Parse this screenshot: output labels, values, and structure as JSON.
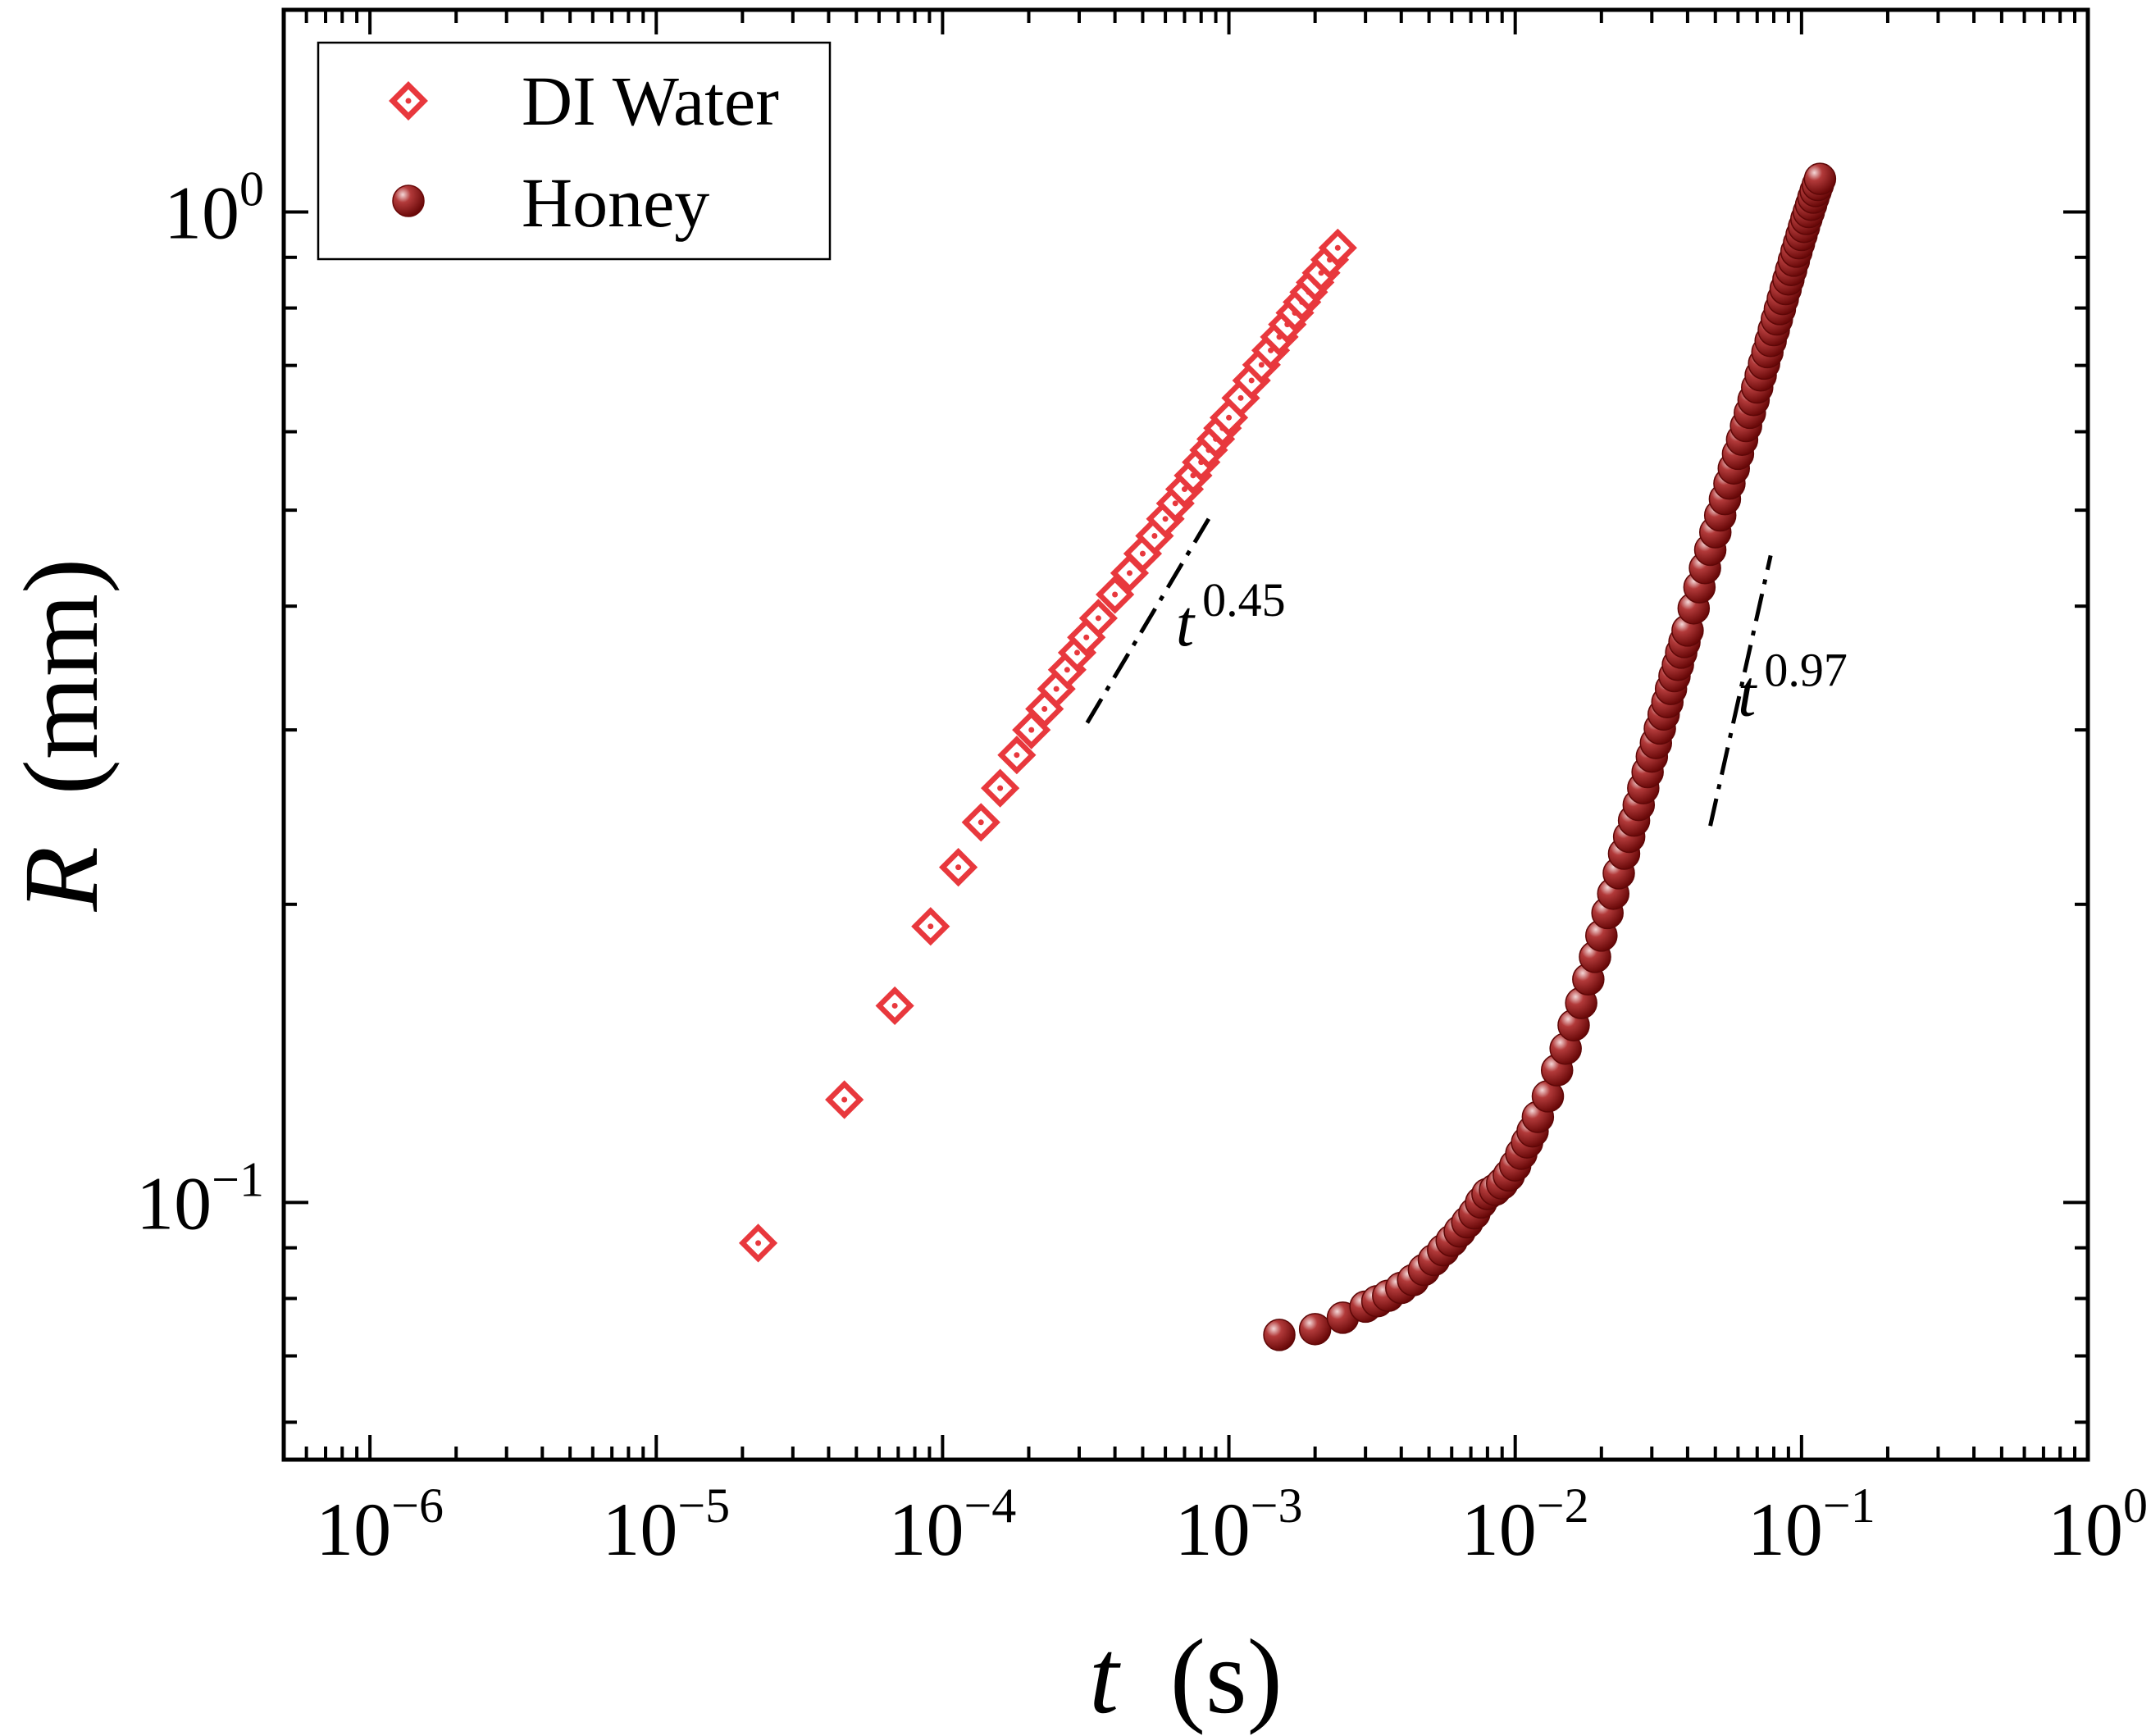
{
  "chart_data": {
    "type": "scatter",
    "scale": {
      "x": "log",
      "y": "log"
    },
    "title": "",
    "xlabel": {
      "symbol": "t",
      "unit": "(s)"
    },
    "ylabel": {
      "symbol": "R",
      "unit": "(mm)"
    },
    "xlim": [
      5e-07,
      1
    ],
    "ylim": [
      0.055,
      1.6
    ],
    "x_major_ticks": [
      1e-06,
      1e-05,
      0.0001,
      0.001,
      0.01,
      0.1,
      1
    ],
    "x_tick_labels": [
      {
        "base": "10",
        "exp": "−6"
      },
      {
        "base": "10",
        "exp": "−5"
      },
      {
        "base": "10",
        "exp": "−4"
      },
      {
        "base": "10",
        "exp": "−3"
      },
      {
        "base": "10",
        "exp": "−2"
      },
      {
        "base": "10",
        "exp": "−1"
      },
      {
        "base": "10",
        "exp": "0"
      }
    ],
    "y_major_ticks": [
      0.1,
      1
    ],
    "y_tick_labels": [
      {
        "base": "10",
        "exp": "−1"
      },
      {
        "base": "10",
        "exp": "0"
      }
    ],
    "grid": false,
    "legend": {
      "position": "top-left"
    },
    "series": [
      {
        "name": "DI Water",
        "marker": "open-diamond",
        "color": "#e8383d",
        "points": [
          [
            2.27e-05,
            0.091
          ],
          [
            4.54e-05,
            0.127
          ],
          [
            6.81e-05,
            0.158
          ],
          [
            9.08e-05,
            0.19
          ],
          [
            0.0001135,
            0.218
          ],
          [
            0.0001362,
            0.242
          ],
          [
            0.0001589,
            0.262
          ],
          [
            0.0001816,
            0.283
          ],
          [
            0.0002043,
            0.3
          ],
          [
            0.000227,
            0.315
          ],
          [
            0.0002497,
            0.33
          ],
          [
            0.0002724,
            0.345
          ],
          [
            0.0002951,
            0.359
          ],
          [
            0.0003178,
            0.372
          ],
          [
            0.00035,
            0.389
          ],
          [
            0.0004,
            0.411
          ],
          [
            0.00045,
            0.432
          ],
          [
            0.0005,
            0.452
          ],
          [
            0.00055,
            0.471
          ],
          [
            0.0006,
            0.49
          ],
          [
            0.00065,
            0.508
          ],
          [
            0.0007,
            0.525
          ],
          [
            0.00075,
            0.542
          ],
          [
            0.0008,
            0.559
          ],
          [
            0.00085,
            0.575
          ],
          [
            0.0009,
            0.59
          ],
          [
            0.00095,
            0.605
          ],
          [
            0.001,
            0.62
          ],
          [
            0.0011,
            0.649
          ],
          [
            0.0012,
            0.676
          ],
          [
            0.0013,
            0.701
          ],
          [
            0.0014,
            0.725
          ],
          [
            0.0015,
            0.748
          ],
          [
            0.0016,
            0.77
          ],
          [
            0.0017,
            0.791
          ],
          [
            0.0018,
            0.811
          ],
          [
            0.0019,
            0.83
          ],
          [
            0.002,
            0.849
          ],
          [
            0.0021,
            0.868
          ],
          [
            0.00225,
            0.895
          ],
          [
            0.0024,
            0.92
          ]
        ]
      },
      {
        "name": "Honey",
        "marker": "filled-circle",
        "color": "#7a0c0c",
        "points": [
          [
            0.0015,
            0.0735
          ],
          [
            0.002,
            0.0745
          ],
          [
            0.0025,
            0.0765
          ],
          [
            0.003,
            0.0785
          ],
          [
            0.0033,
            0.0795
          ],
          [
            0.0036,
            0.0805
          ],
          [
            0.004,
            0.082
          ],
          [
            0.0044,
            0.0835
          ],
          [
            0.0048,
            0.0855
          ],
          [
            0.0052,
            0.0875
          ],
          [
            0.0056,
            0.0895
          ],
          [
            0.006,
            0.0915
          ],
          [
            0.0064,
            0.0935
          ],
          [
            0.0068,
            0.0955
          ],
          [
            0.0072,
            0.0975
          ],
          [
            0.0076,
            0.1
          ],
          [
            0.008,
            0.102
          ],
          [
            0.0085,
            0.103
          ],
          [
            0.009,
            0.1045
          ],
          [
            0.0095,
            0.1065
          ],
          [
            0.01,
            0.109
          ],
          [
            0.0105,
            0.112
          ],
          [
            0.011,
            0.115
          ],
          [
            0.0115,
            0.118
          ],
          [
            0.012,
            0.122
          ],
          [
            0.013,
            0.128
          ],
          [
            0.014,
            0.136
          ],
          [
            0.015,
            0.143
          ],
          [
            0.016,
            0.151
          ],
          [
            0.017,
            0.159
          ],
          [
            0.018,
            0.168
          ],
          [
            0.019,
            0.177
          ],
          [
            0.02,
            0.186
          ],
          [
            0.021,
            0.196
          ],
          [
            0.022,
            0.205
          ],
          [
            0.023,
            0.215
          ],
          [
            0.024,
            0.225
          ],
          [
            0.025,
            0.234
          ],
          [
            0.026,
            0.243
          ],
          [
            0.027,
            0.252
          ],
          [
            0.028,
            0.262
          ],
          [
            0.029,
            0.272
          ],
          [
            0.03,
            0.282
          ],
          [
            0.031,
            0.291
          ],
          [
            0.032,
            0.301
          ],
          [
            0.033,
            0.311
          ],
          [
            0.034,
            0.32
          ],
          [
            0.035,
            0.33
          ],
          [
            0.036,
            0.34
          ],
          [
            0.037,
            0.349
          ],
          [
            0.038,
            0.359
          ],
          [
            0.039,
            0.368
          ],
          [
            0.04,
            0.378
          ],
          [
            0.042,
            0.398
          ],
          [
            0.044,
            0.418
          ],
          [
            0.046,
            0.437
          ],
          [
            0.048,
            0.456
          ],
          [
            0.05,
            0.475
          ],
          [
            0.052,
            0.494
          ],
          [
            0.054,
            0.513
          ],
          [
            0.056,
            0.532
          ],
          [
            0.058,
            0.551
          ],
          [
            0.06,
            0.57
          ],
          [
            0.062,
            0.589
          ],
          [
            0.064,
            0.608
          ],
          [
            0.066,
            0.627
          ],
          [
            0.068,
            0.646
          ],
          [
            0.07,
            0.665
          ],
          [
            0.072,
            0.684
          ],
          [
            0.074,
            0.703
          ],
          [
            0.076,
            0.722
          ],
          [
            0.078,
            0.741
          ],
          [
            0.08,
            0.76
          ],
          [
            0.082,
            0.779
          ],
          [
            0.084,
            0.798
          ],
          [
            0.086,
            0.817
          ],
          [
            0.088,
            0.836
          ],
          [
            0.09,
            0.855
          ],
          [
            0.092,
            0.874
          ],
          [
            0.094,
            0.893
          ],
          [
            0.096,
            0.912
          ],
          [
            0.098,
            0.93
          ],
          [
            0.1,
            0.948
          ],
          [
            0.102,
            0.966
          ],
          [
            0.104,
            0.984
          ],
          [
            0.106,
            1.0
          ],
          [
            0.108,
            1.017
          ],
          [
            0.11,
            1.034
          ],
          [
            0.112,
            1.05
          ],
          [
            0.114,
            1.065
          ],
          [
            0.116,
            1.08
          ]
        ]
      }
    ],
    "annotations": [
      {
        "type": "guide-line",
        "style": "dash-dot",
        "label": {
          "base": "t",
          "exp": "0.45"
        },
        "from": [
          0.00032,
          0.305
        ],
        "to": [
          0.00085,
          0.49
        ]
      },
      {
        "type": "guide-line",
        "style": "dash-dot",
        "label": {
          "base": "t",
          "exp": "0.97"
        },
        "from": [
          0.048,
          0.24
        ],
        "to": [
          0.078,
          0.45
        ]
      }
    ]
  }
}
